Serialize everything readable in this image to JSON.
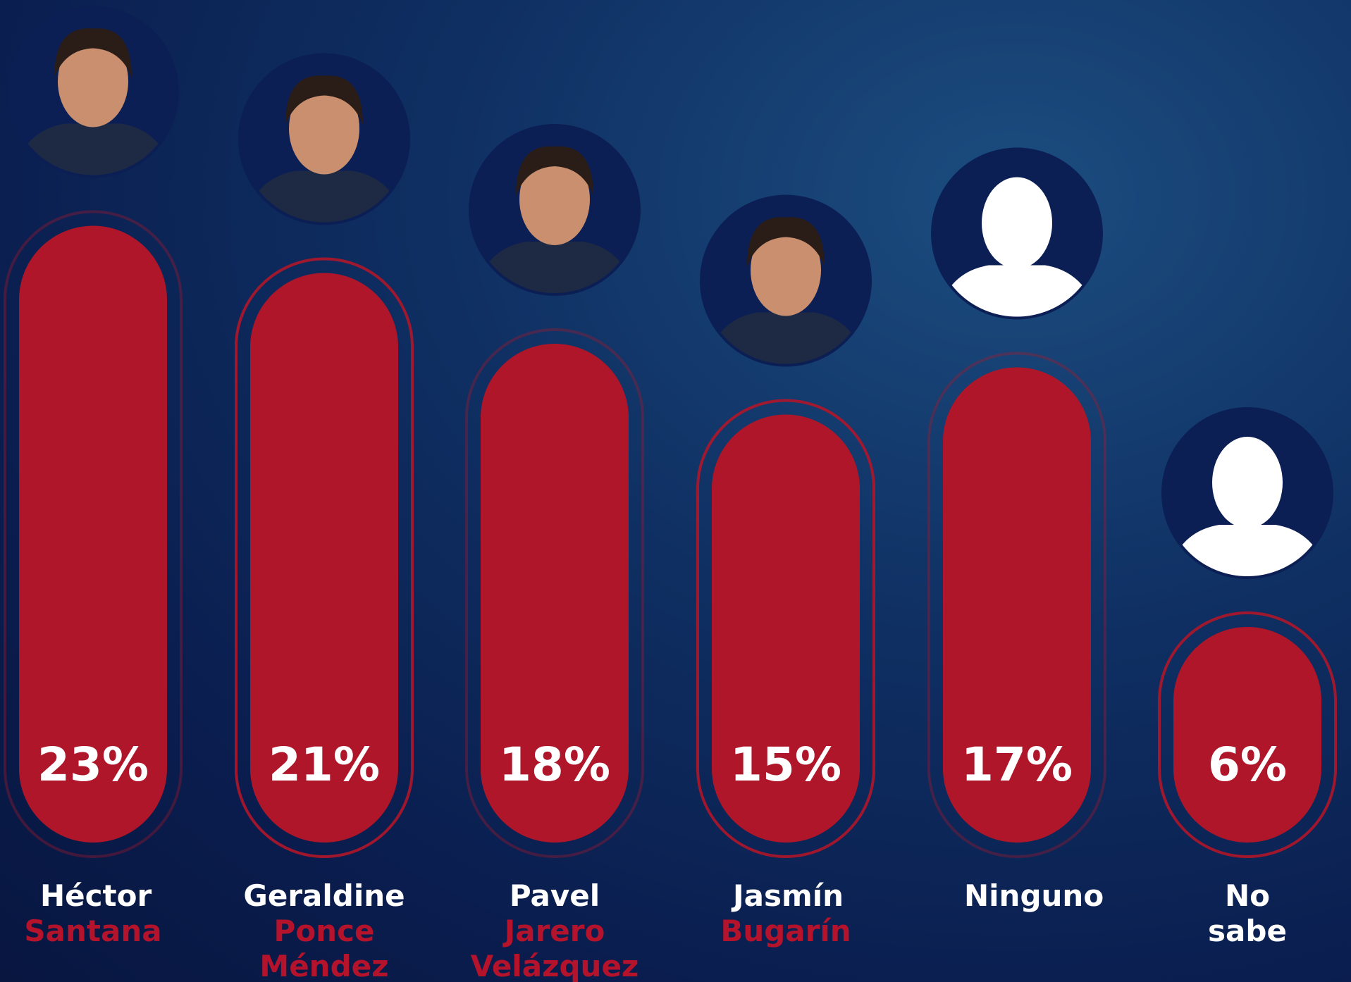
{
  "chart_data": {
    "type": "bar",
    "categories": [
      "Héctor",
      "Geraldine",
      "Pavel",
      "Jasmín",
      "Ninguno",
      "No sabe"
    ],
    "surnames": [
      "Santana",
      "Ponce Méndez",
      "Jarero Velázquez",
      "Bugarín",
      null,
      null
    ],
    "values": [
      23,
      21,
      18,
      15,
      17,
      6
    ],
    "value_labels": [
      "23%",
      "21%",
      "18%",
      "15%",
      "17%",
      "6%"
    ],
    "color": "#b01629"
  }
}
